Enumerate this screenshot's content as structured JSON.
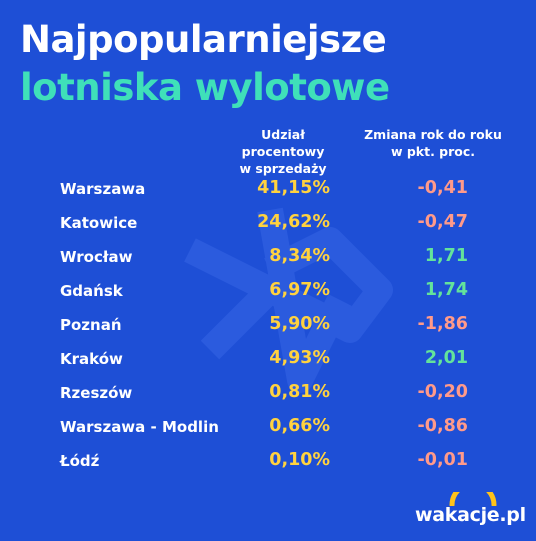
{
  "title": {
    "line1": "Najpopularniejsze",
    "line2": "lotniska wylotowe"
  },
  "columns": {
    "share_line1": "Udział procentowy",
    "share_line2": "w sprzedaży",
    "change_line1": "Zmiana rok do roku",
    "change_line2": "w pkt. proc."
  },
  "rows": [
    {
      "city": "Warszawa",
      "share": "41,15%",
      "change": "-0,41",
      "trend": "neg"
    },
    {
      "city": "Katowice",
      "share": "24,62%",
      "change": "-0,47",
      "trend": "neg"
    },
    {
      "city": "Wrocław",
      "share": "8,34%",
      "change": "1,71",
      "trend": "pos"
    },
    {
      "city": "Gdańsk",
      "share": "6,97%",
      "change": "1,74",
      "trend": "pos"
    },
    {
      "city": "Poznań",
      "share": "5,90%",
      "change": "-1,86",
      "trend": "neg"
    },
    {
      "city": "Kraków",
      "share": "4,93%",
      "change": "2,01",
      "trend": "pos"
    },
    {
      "city": "Rzeszów",
      "share": "0,81%",
      "change": "-0,20",
      "trend": "neg"
    },
    {
      "city": "Warszawa - Modlin",
      "share": "0,66%",
      "change": "-0,86",
      "trend": "neg"
    },
    {
      "city": "Łódź",
      "share": "0,10%",
      "change": "-0,01",
      "trend": "neg"
    }
  ],
  "logo": {
    "text": "wakacje.pl"
  },
  "colors": {
    "background": "#1e4fd6",
    "title_accent": "#3fe0b9",
    "share_value": "#ffd23f",
    "negative": "#ff9a8a",
    "positive": "#63e39b",
    "logo_arc": "#ffc21a"
  }
}
